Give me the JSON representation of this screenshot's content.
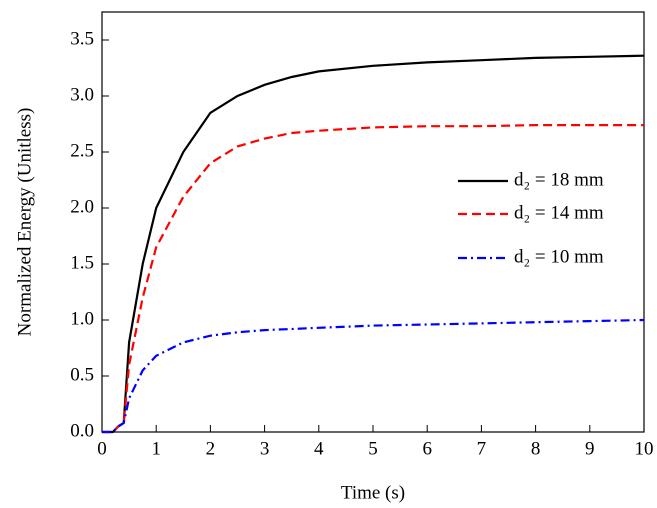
{
  "chart_data": {
    "type": "line",
    "x_label": "Time (s)",
    "y_label": "Normalized Energy (Unitless)",
    "x": [
      0,
      0.2,
      0.3,
      0.4,
      0.5,
      0.75,
      1,
      1.5,
      2,
      2.5,
      3,
      3.5,
      4,
      5,
      6,
      7,
      8,
      9,
      10
    ],
    "series": [
      {
        "name": "d₂ = 18 mm",
        "color": "#000000",
        "linestyle": "solid",
        "values": [
          0,
          0,
          0.05,
          0.08,
          0.8,
          1.5,
          2.0,
          2.5,
          2.85,
          3.0,
          3.1,
          3.17,
          3.22,
          3.27,
          3.3,
          3.32,
          3.34,
          3.35,
          3.36
        ]
      },
      {
        "name": "d₂ = 14 mm",
        "color": "#ff0000",
        "linestyle": "dashed",
        "values": [
          0,
          0,
          0.05,
          0.08,
          0.6,
          1.2,
          1.65,
          2.1,
          2.4,
          2.55,
          2.62,
          2.67,
          2.69,
          2.72,
          2.73,
          2.73,
          2.74,
          2.74,
          2.74
        ]
      },
      {
        "name": "d₂ = 10 mm",
        "color": "#0000ff",
        "linestyle": "dashdot",
        "values": [
          0,
          0,
          0.05,
          0.08,
          0.3,
          0.55,
          0.68,
          0.8,
          0.86,
          0.89,
          0.91,
          0.92,
          0.93,
          0.95,
          0.96,
          0.97,
          0.98,
          0.99,
          1.0
        ]
      }
    ],
    "xlim": [
      0,
      10
    ],
    "xticks": [
      0,
      1,
      2,
      3,
      4,
      5,
      6,
      7,
      8,
      9,
      10
    ],
    "ylim": [
      0,
      3.75
    ],
    "yticks": [
      {
        "value": 0,
        "label": "0.0"
      },
      0.5,
      {
        "value": 1,
        "label": "1.0"
      },
      1.5,
      {
        "value": 2,
        "label": "2.0"
      },
      2.5,
      {
        "value": 3,
        "label": "3.0"
      },
      3.5
    ],
    "grid": false,
    "legend": "right"
  }
}
